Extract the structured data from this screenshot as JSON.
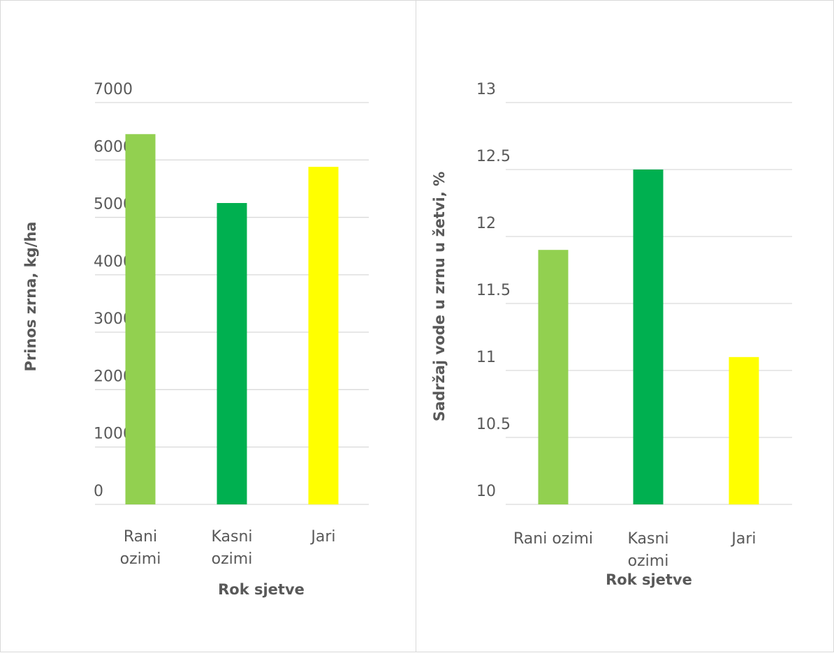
{
  "chart_data": [
    {
      "type": "bar",
      "categories": [
        "Rani ozimi",
        "Kasni ozimi",
        "Jari"
      ],
      "category_lines": [
        [
          "Rani",
          "ozimi"
        ],
        [
          "Kasni",
          "ozimi"
        ],
        [
          "Jari"
        ]
      ],
      "values": [
        6450,
        5250,
        5880
      ],
      "colors": [
        "#92d050",
        "#00b050",
        "#ffff00"
      ],
      "title": "",
      "xlabel": "Rok sjetve",
      "ylabel": "Prinos zrna, kg/ha",
      "ylim": [
        0,
        7000
      ],
      "yticks": [
        "0",
        "1000",
        "2000",
        "3000",
        "4000",
        "5000",
        "6000",
        "7000"
      ],
      "grid": true,
      "legend": "none"
    },
    {
      "type": "bar",
      "categories": [
        "Rani ozimi",
        "Kasni ozimi",
        "Jari"
      ],
      "category_lines": [
        [
          "Rani ozimi"
        ],
        [
          "Kasni",
          "ozimi"
        ],
        [
          "Jari"
        ]
      ],
      "values": [
        11.9,
        12.5,
        11.1
      ],
      "colors": [
        "#92d050",
        "#00b050",
        "#ffff00"
      ],
      "title": "",
      "xlabel": "Rok sjetve",
      "ylabel": "Sadržaj vode u zrnu u žetvi, %",
      "ylim": [
        10,
        13
      ],
      "yticks": [
        "10",
        "10.5",
        "11",
        "11.5",
        "12",
        "12.5",
        "13"
      ],
      "grid": true,
      "legend": "none"
    }
  ]
}
